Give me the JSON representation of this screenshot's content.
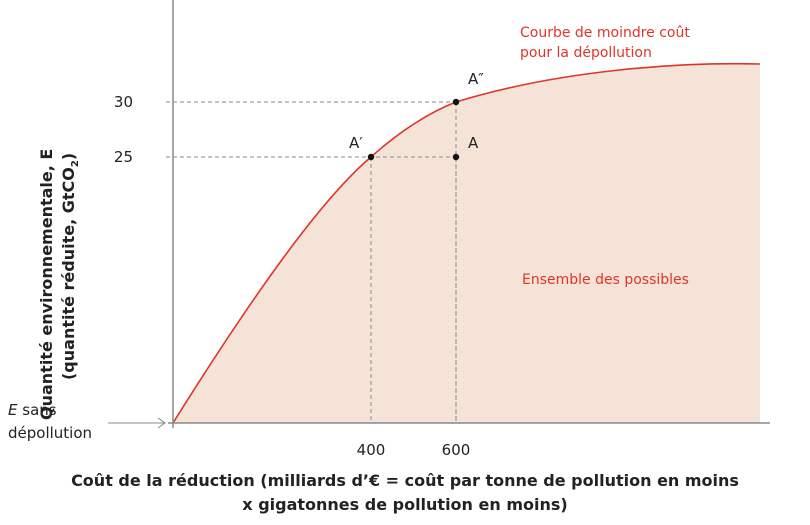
{
  "chart_data": {
    "type": "area",
    "title": "",
    "xlabel_line1": "Coût de la réduction (milliards d’€ = coût par tonne de pollution en moins",
    "xlabel_line2": "x gigatonnes de pollution en moins)",
    "ylabel_line1": "Quantité environnementale, E",
    "ylabel_line2": "(quantité réduite, GtCO",
    "ylabel_sub": "2",
    "ylabel_close": ")",
    "x_ticks": [
      "400",
      "600"
    ],
    "x_tick_values": [
      400,
      600
    ],
    "y_ticks": [
      "25",
      "30"
    ],
    "y_tick_values": [
      25,
      30
    ],
    "origin_label_italic": "E",
    "origin_label_1": " sans",
    "origin_label_2": "dépollution",
    "curve_label_1": "Courbe de moindre coût",
    "curve_label_2": "pour la dépollution",
    "region_label": "Ensemble des possibles",
    "points": [
      {
        "name": "A′",
        "x": 400,
        "y": 25
      },
      {
        "name": "A",
        "x": 600,
        "y": 25
      },
      {
        "name": "A″",
        "x": 600,
        "y": 30
      }
    ],
    "colors": {
      "curve": "#e0342a",
      "fill": "#f5e3d8",
      "axis": "#888888",
      "text": "#222222"
    }
  }
}
